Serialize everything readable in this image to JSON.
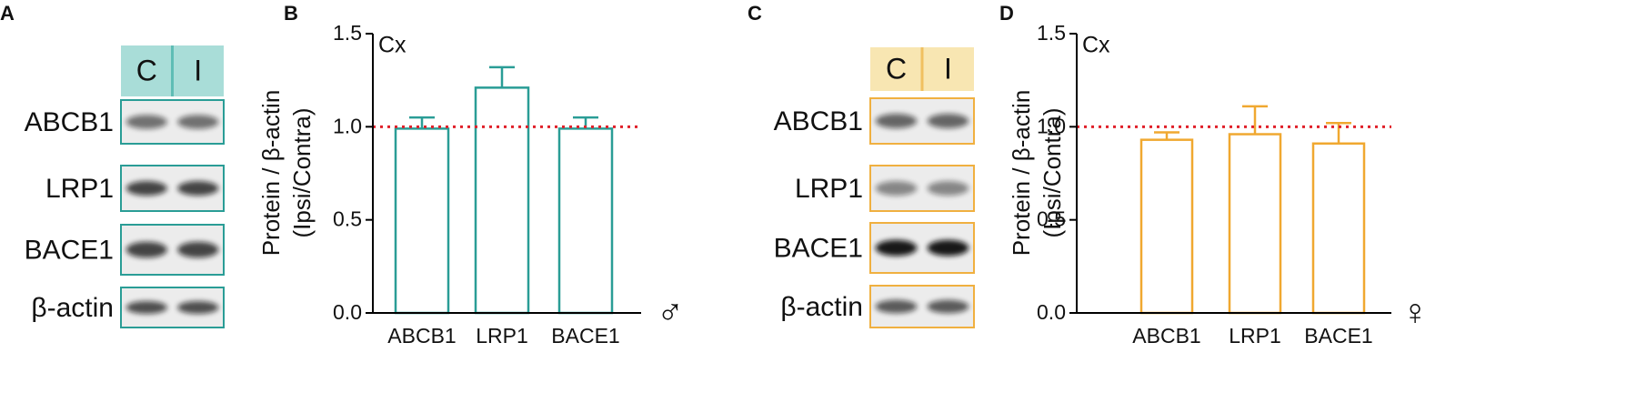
{
  "panel_labels": [
    "A",
    "B",
    "C",
    "D"
  ],
  "blots": [
    {
      "header": [
        "C",
        "I"
      ],
      "rows": [
        "ABCB1",
        "LRP1",
        "BACE1",
        "β-actin"
      ]
    },
    {
      "header": [
        "C",
        "I"
      ],
      "rows": [
        "ABCB1",
        "LRP1",
        "BACE1",
        "β-actin"
      ]
    }
  ],
  "chart_data": [
    {
      "type": "bar",
      "annotation": "Cx",
      "symbol": "♂",
      "ylabel": [
        "Protein / β-actin",
        "(Ipsi/Contra)"
      ],
      "categories": [
        "ABCB1",
        "LRP1",
        "BACE1"
      ],
      "values": [
        0.99,
        1.21,
        0.99
      ],
      "errors": [
        0.06,
        0.11,
        0.06
      ],
      "color": "#2a9d96",
      "reference_line": 1,
      "reference_color": "#e0202a",
      "ylim": [
        0,
        1.5
      ],
      "yticks": [
        {
          "value": 0,
          "label": "0.0"
        },
        0.5,
        {
          "value": 1,
          "label": "1.0"
        },
        1.5
      ]
    },
    {
      "type": "bar",
      "annotation": "Cx",
      "symbol": "♀",
      "ylabel": [
        "Protein / β-actin",
        "(Ipsi/Contra)"
      ],
      "categories": [
        "ABCB1",
        "LRP1",
        "BACE1"
      ],
      "values": [
        0.93,
        0.96,
        0.91
      ],
      "errors": [
        0.04,
        0.15,
        0.11
      ],
      "color": "#f0a830",
      "reference_line": 1,
      "reference_color": "#e0202a",
      "ylim": [
        0,
        1.5
      ],
      "yticks": [
        {
          "value": 0,
          "label": "0.0"
        },
        0.5,
        {
          "value": 1,
          "label": "1.0"
        },
        1.5
      ]
    }
  ]
}
